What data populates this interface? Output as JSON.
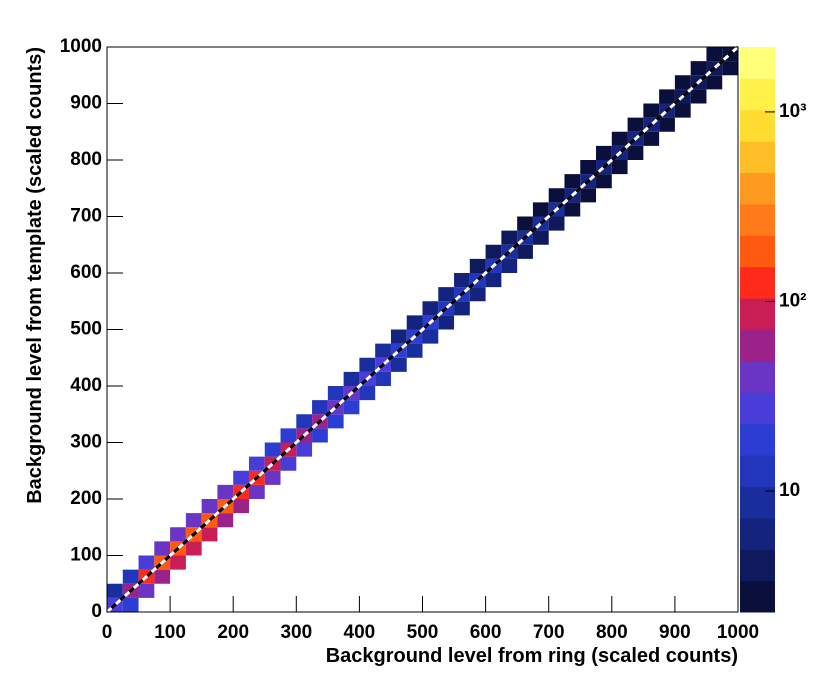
{
  "chart_data": {
    "type": "heatmap",
    "x_label": "Background level from ring (scaled counts)",
    "y_label": "Background level from template (scaled counts)",
    "xlim": [
      0,
      1000
    ],
    "ylim": [
      0,
      1000
    ],
    "xticks": [
      0,
      100,
      200,
      300,
      400,
      500,
      600,
      700,
      800,
      900,
      1000
    ],
    "yticks": [
      0,
      100,
      200,
      300,
      400,
      500,
      600,
      700,
      800,
      900,
      1000
    ],
    "zlim": [
      2.3,
      2200
    ],
    "zscale": "log",
    "zticks": [
      10,
      {
        "value": 100,
        "label": "10²"
      },
      {
        "value": 1000,
        "label": "10³"
      }
    ],
    "palette": [
      "#0b0f3c",
      "#0f1a5e",
      "#14237e",
      "#1a2d9c",
      "#2236bb",
      "#2c3dd4",
      "#4a3cd8",
      "#6a34c4",
      "#9a2288",
      "#c81e55",
      "#ff2a1a",
      "#ff5a10",
      "#ff7a18",
      "#ff9a20",
      "#ffbd28",
      "#ffdc30",
      "#fff04a",
      "#ffff78"
    ],
    "bin_width": 25,
    "cells": [
      [
        12.5,
        12.5,
        30
      ],
      [
        12.5,
        37.5,
        10
      ],
      [
        37.5,
        12.5,
        20
      ],
      [
        37.5,
        37.5,
        60
      ],
      [
        37.5,
        62.5,
        15
      ],
      [
        62.5,
        37.5,
        45
      ],
      [
        62.5,
        62.5,
        120
      ],
      [
        62.5,
        87.5,
        30
      ],
      [
        87.5,
        62.5,
        60
      ],
      [
        87.5,
        87.5,
        160
      ],
      [
        87.5,
        112.5,
        40
      ],
      [
        112.5,
        87.5,
        75
      ],
      [
        112.5,
        112.5,
        200
      ],
      [
        112.5,
        137.5,
        45
      ],
      [
        137.5,
        112.5,
        85
      ],
      [
        137.5,
        137.5,
        220
      ],
      [
        137.5,
        162.5,
        45
      ],
      [
        162.5,
        137.5,
        80
      ],
      [
        162.5,
        162.5,
        200
      ],
      [
        162.5,
        187.5,
        40
      ],
      [
        187.5,
        162.5,
        70
      ],
      [
        187.5,
        187.5,
        170
      ],
      [
        187.5,
        212.5,
        35
      ],
      [
        212.5,
        187.5,
        55
      ],
      [
        212.5,
        212.5,
        140
      ],
      [
        212.5,
        237.5,
        30
      ],
      [
        237.5,
        212.5,
        45
      ],
      [
        237.5,
        237.5,
        110
      ],
      [
        237.5,
        262.5,
        25
      ],
      [
        262.5,
        237.5,
        38
      ],
      [
        262.5,
        262.5,
        90
      ],
      [
        262.5,
        287.5,
        20
      ],
      [
        287.5,
        262.5,
        32
      ],
      [
        287.5,
        287.5,
        75
      ],
      [
        287.5,
        312.5,
        18
      ],
      [
        312.5,
        287.5,
        26
      ],
      [
        312.5,
        312.5,
        60
      ],
      [
        312.5,
        337.5,
        15
      ],
      [
        337.5,
        312.5,
        22
      ],
      [
        337.5,
        337.5,
        50
      ],
      [
        337.5,
        362.5,
        13
      ],
      [
        362.5,
        337.5,
        19
      ],
      [
        362.5,
        362.5,
        42
      ],
      [
        362.5,
        387.5,
        11
      ],
      [
        387.5,
        362.5,
        16
      ],
      [
        387.5,
        387.5,
        36
      ],
      [
        387.5,
        412.5,
        10
      ],
      [
        412.5,
        387.5,
        14
      ],
      [
        412.5,
        412.5,
        30
      ],
      [
        412.5,
        437.5,
        9
      ],
      [
        437.5,
        412.5,
        12
      ],
      [
        437.5,
        437.5,
        26
      ],
      [
        437.5,
        462.5,
        8
      ],
      [
        462.5,
        437.5,
        10
      ],
      [
        462.5,
        462.5,
        22
      ],
      [
        462.5,
        487.5,
        7
      ],
      [
        487.5,
        462.5,
        9
      ],
      [
        487.5,
        487.5,
        19
      ],
      [
        487.5,
        512.5,
        6
      ],
      [
        512.5,
        487.5,
        8
      ],
      [
        512.5,
        512.5,
        17
      ],
      [
        512.5,
        537.5,
        6
      ],
      [
        537.5,
        512.5,
        7
      ],
      [
        537.5,
        537.5,
        15
      ],
      [
        537.5,
        562.5,
        5
      ],
      [
        562.5,
        537.5,
        6
      ],
      [
        562.5,
        562.5,
        13
      ],
      [
        562.5,
        587.5,
        5
      ],
      [
        587.5,
        562.5,
        6
      ],
      [
        587.5,
        587.5,
        12
      ],
      [
        587.5,
        612.5,
        4
      ],
      [
        612.5,
        587.5,
        5
      ],
      [
        612.5,
        612.5,
        11
      ],
      [
        612.5,
        637.5,
        4
      ],
      [
        637.5,
        612.5,
        5
      ],
      [
        637.5,
        637.5,
        10
      ],
      [
        637.5,
        662.5,
        4
      ],
      [
        662.5,
        637.5,
        4
      ],
      [
        662.5,
        662.5,
        9
      ],
      [
        662.5,
        687.5,
        3
      ],
      [
        687.5,
        662.5,
        4
      ],
      [
        687.5,
        687.5,
        8
      ],
      [
        687.5,
        712.5,
        3
      ],
      [
        712.5,
        687.5,
        4
      ],
      [
        712.5,
        712.5,
        8
      ],
      [
        712.5,
        737.5,
        3
      ],
      [
        737.5,
        712.5,
        3
      ],
      [
        737.5,
        737.5,
        7
      ],
      [
        737.5,
        762.5,
        3
      ],
      [
        762.5,
        737.5,
        3
      ],
      [
        762.5,
        762.5,
        7
      ],
      [
        762.5,
        787.5,
        3
      ],
      [
        787.5,
        762.5,
        3
      ],
      [
        787.5,
        787.5,
        6
      ],
      [
        787.5,
        812.5,
        2
      ],
      [
        812.5,
        787.5,
        3
      ],
      [
        812.5,
        812.5,
        6
      ],
      [
        812.5,
        837.5,
        2
      ],
      [
        837.5,
        812.5,
        3
      ],
      [
        837.5,
        837.5,
        5
      ],
      [
        837.5,
        862.5,
        2
      ],
      [
        862.5,
        837.5,
        3
      ],
      [
        862.5,
        862.5,
        5
      ],
      [
        862.5,
        887.5,
        2
      ],
      [
        887.5,
        862.5,
        2
      ],
      [
        887.5,
        887.5,
        5
      ],
      [
        887.5,
        912.5,
        2
      ],
      [
        912.5,
        887.5,
        2
      ],
      [
        912.5,
        912.5,
        4
      ],
      [
        912.5,
        937.5,
        2
      ],
      [
        937.5,
        912.5,
        2
      ],
      [
        937.5,
        937.5,
        4
      ],
      [
        937.5,
        962.5,
        2
      ],
      [
        962.5,
        937.5,
        2
      ],
      [
        962.5,
        962.5,
        4
      ],
      [
        962.5,
        987.5,
        2
      ],
      [
        987.5,
        962.5,
        2
      ],
      [
        987.5,
        987.5,
        3
      ]
    ],
    "line": {
      "x": [
        0,
        1000
      ],
      "y": [
        0,
        1000
      ]
    }
  }
}
